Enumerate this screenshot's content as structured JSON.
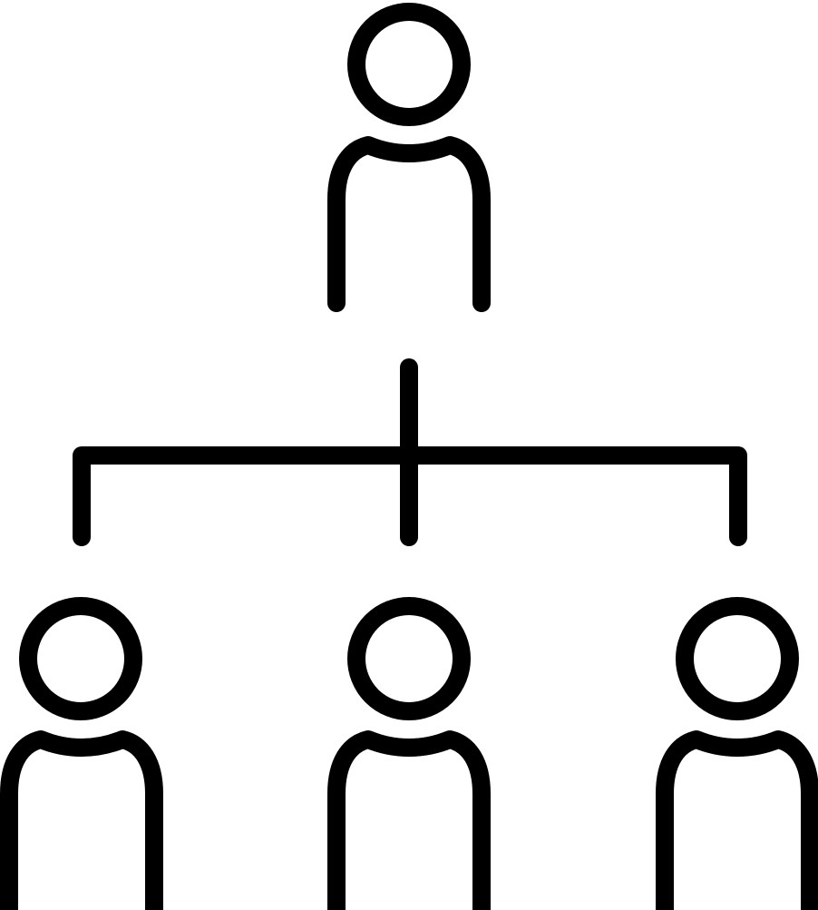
{
  "icon": {
    "name": "org-chart-icon",
    "stroke_color": "#000000",
    "background_color": "#ffffff"
  },
  "diagram": {
    "type": "hierarchy",
    "root": "person",
    "children": [
      "person",
      "person",
      "person"
    ]
  }
}
